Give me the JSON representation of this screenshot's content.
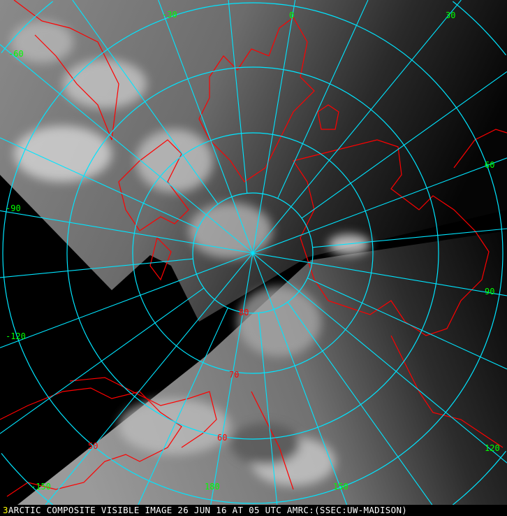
{
  "image": {
    "frame_number": "3",
    "caption": "ARCTIC COMPOSITE VISIBLE IMAGE 26 JUN 16 AT 05 UTC AMRC:(SSEC:UW-MADISON)"
  },
  "map": {
    "projection": "polar stereographic, north pole",
    "longitude_labels": [
      "-30",
      "0",
      "30",
      "60",
      "90",
      "120",
      "150",
      "180",
      "-150",
      "-120",
      "-90",
      "-60"
    ],
    "latitude_labels": [
      "80",
      "70",
      "60",
      "50"
    ],
    "colors": {
      "grid": "#00e5ff",
      "coastline": "#ff0000",
      "longitude_label": "#00ff00",
      "latitude_label": "#ff0000",
      "frame_number": "#ffff00",
      "caption": "#ffffff"
    }
  }
}
